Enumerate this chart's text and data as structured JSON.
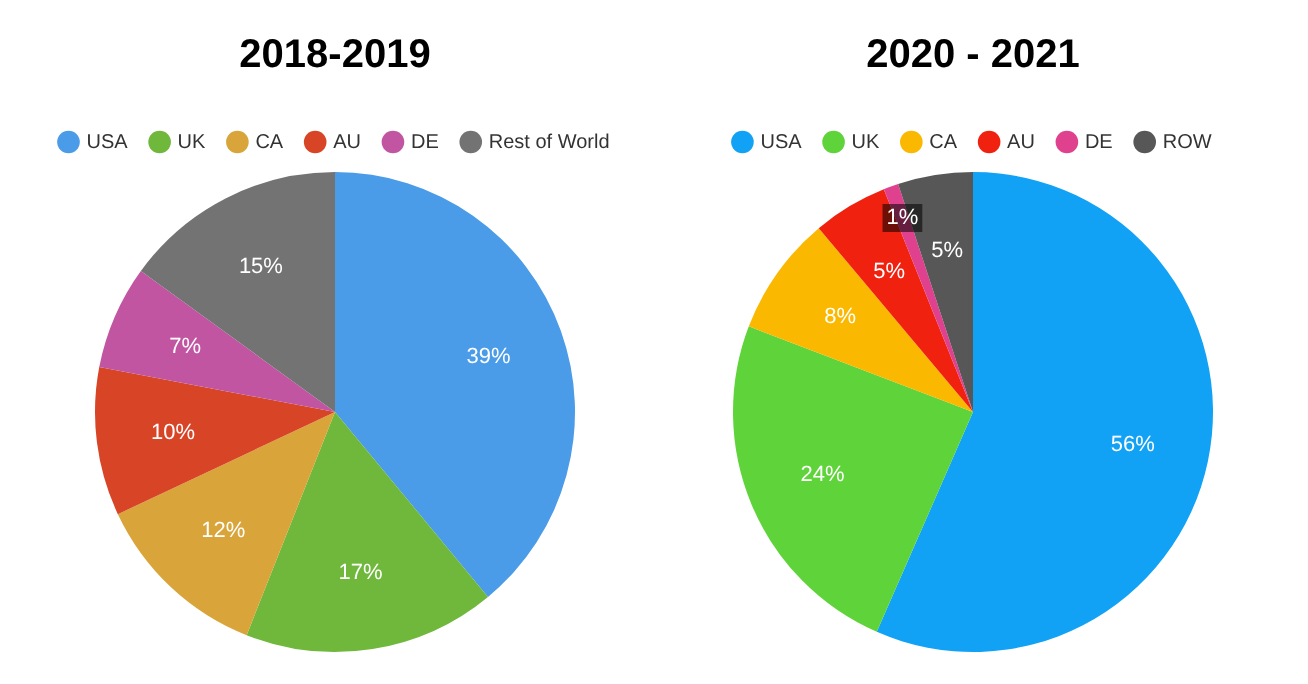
{
  "chart_data": [
    {
      "type": "pie",
      "title": "2018-2019",
      "categories": [
        "USA",
        "UK",
        "CA",
        "AU",
        "DE",
        "Rest of World"
      ],
      "values": [
        39,
        17,
        12,
        10,
        7,
        15
      ],
      "colors": [
        "#4a9be8",
        "#6fb83c",
        "#d9a53a",
        "#d84426",
        "#c155a2",
        "#737373"
      ],
      "value_labels": [
        "39%",
        "17%",
        "12%",
        "10%",
        "7%",
        "15%"
      ],
      "legend": "top"
    },
    {
      "type": "pie",
      "title": "2020 - 2021",
      "categories": [
        "USA",
        "UK",
        "CA",
        "AU",
        "DE",
        "ROW"
      ],
      "values": [
        56,
        24,
        8,
        5,
        1,
        5
      ],
      "colors": [
        "#11a2f5",
        "#5fd33a",
        "#fbb800",
        "#f0220f",
        "#e0418e",
        "#575757"
      ],
      "value_labels": [
        "56%",
        "24%",
        "8%",
        "5%",
        "1%",
        "5%"
      ],
      "legend": "top"
    }
  ]
}
